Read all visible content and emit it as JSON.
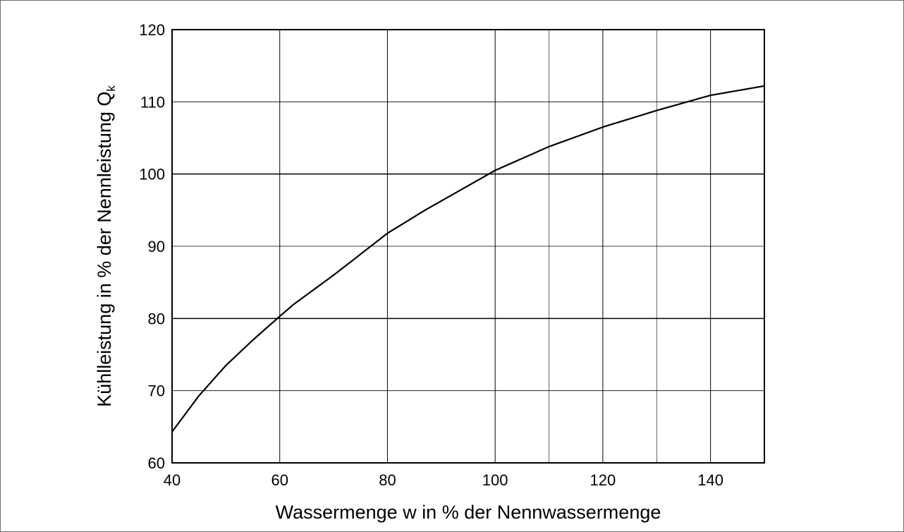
{
  "chart_data": {
    "type": "line",
    "xlabel": "Wassermenge w in % der Nennwassermenge",
    "ylabel": {
      "main": "Kühlleistung in % der Nennleistung Q",
      "subscript": "k"
    },
    "xlim": [
      40,
      150
    ],
    "ylim": [
      60,
      120
    ],
    "x_ticks": [
      40,
      60,
      80,
      100,
      120,
      140
    ],
    "y_ticks": [
      60,
      70,
      80,
      90,
      100,
      110,
      120
    ],
    "x_grid": [
      40,
      60,
      80,
      100,
      110,
      120,
      130,
      140,
      150
    ],
    "y_grid": [
      60,
      70,
      80,
      90,
      100,
      110,
      120
    ],
    "grid": true,
    "series": [
      {
        "color": "#000000",
        "x": [
          40,
          45,
          50,
          55,
          60,
          62.5,
          70,
          75,
          80,
          87,
          100,
          110,
          120,
          130,
          140,
          150
        ],
        "y": [
          64.3,
          69.3,
          73.5,
          77,
          80.3,
          81.9,
          86,
          88.9,
          91.8,
          95,
          100.5,
          103.8,
          106.5,
          108.8,
          110.9,
          112.2
        ]
      }
    ]
  }
}
